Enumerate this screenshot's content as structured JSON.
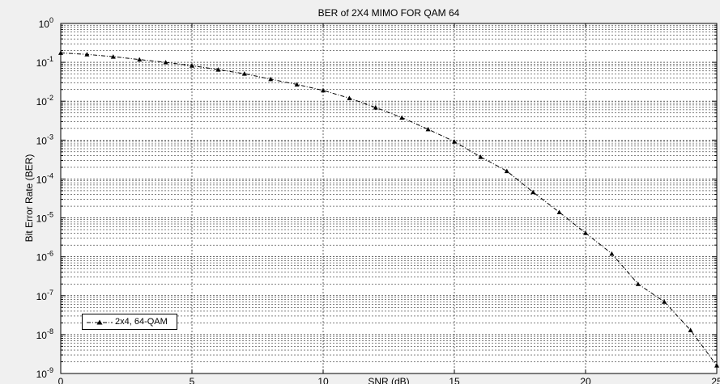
{
  "chart_data": {
    "type": "line",
    "title": "BER of 2X4 MIMO FOR QAM 64",
    "xlabel": "SNR (dB)",
    "ylabel": "Bit Error Rate (BER)",
    "xlim": [
      0,
      25
    ],
    "ylim": [
      1e-09,
      1
    ],
    "yscale": "log",
    "x_ticks": [
      "0",
      "5",
      "10",
      "15",
      "20",
      "25"
    ],
    "y_tick_exponents": [
      "0",
      "-1",
      "-2",
      "-3",
      "-4",
      "-5",
      "-6",
      "-7",
      "-8",
      "-9"
    ],
    "y_tick_base": "10",
    "grid": true,
    "legend_position": "bottom-left",
    "series": [
      {
        "name": "2x4, 64-QAM",
        "color": "#000000",
        "line_style": "dash-dot",
        "marker": "triangle-up",
        "x": [
          0,
          1,
          2,
          3,
          4,
          5,
          6,
          7,
          8,
          9,
          10,
          11,
          12,
          13,
          14,
          15,
          16,
          17,
          18,
          19,
          20,
          21,
          22,
          23,
          24,
          25
        ],
        "y": [
          0.175,
          0.16,
          0.14,
          0.118,
          0.1,
          0.082,
          0.065,
          0.051,
          0.037,
          0.027,
          0.019,
          0.012,
          0.0069,
          0.0038,
          0.0019,
          0.00092,
          0.00037,
          0.00016,
          4.6e-05,
          1.4e-05,
          4.1e-06,
          1.2e-06,
          2e-07,
          7e-08,
          1.3e-08,
          1.6e-09
        ]
      }
    ]
  }
}
